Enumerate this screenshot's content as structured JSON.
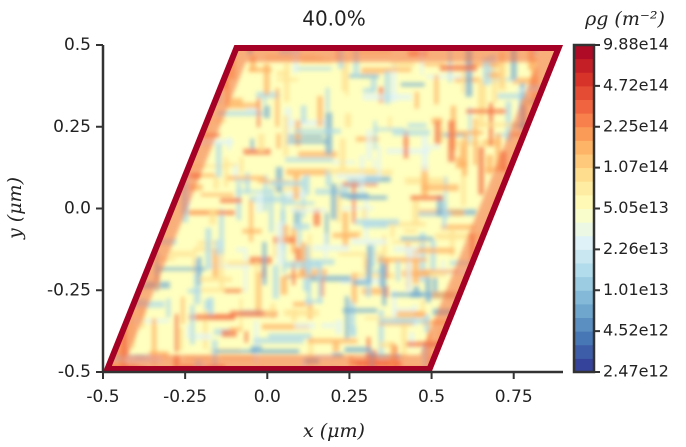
{
  "chart_data": {
    "type": "heatmap",
    "title": "40.0%",
    "xlabel": "x (μm)",
    "ylabel": "y (μm)",
    "xlim": [
      -0.5,
      0.9
    ],
    "ylim": [
      -0.5,
      0.5
    ],
    "xticks": [
      -0.5,
      -0.25,
      {
        "value": 0,
        "label": "0.0"
      },
      0.25,
      0.5,
      0.75
    ],
    "yticks": [
      -0.5,
      -0.25,
      {
        "value": 0,
        "label": "0.0"
      },
      0.25,
      0.5
    ],
    "domain_corners": [
      [
        -0.1,
        0.5
      ],
      [
        0.9,
        0.5
      ],
      [
        0.5,
        -0.5
      ],
      [
        -0.5,
        -0.5
      ]
    ],
    "colorbar": {
      "label": "ρg (m⁻²)",
      "scale": "levels",
      "ticks": [
        {
          "value": 2470000000000.0,
          "label": "2.47e12"
        },
        {
          "value": 4520000000000.0,
          "label": "4.52e12"
        },
        {
          "value": 10100000000000.0,
          "label": "1.01e13"
        },
        {
          "value": 22600000000000.0,
          "label": "2.26e13"
        },
        {
          "value": 50500000000000.0,
          "label": "5.05e13"
        },
        {
          "value": 107000000000000.0,
          "label": "1.07e14"
        },
        {
          "value": 225000000000000.0,
          "label": "2.25e14"
        },
        {
          "value": 472000000000000.0,
          "label": "4.72e14"
        },
        {
          "value": 988000000000000.0,
          "label": "9.88e14"
        }
      ]
    },
    "colormap": [
      "#313695",
      "#4575b4",
      "#74add1",
      "#abd9e9",
      "#e0f3f8",
      "#ffffbf",
      "#fee090",
      "#fdae61",
      "#f46d43",
      "#d73027",
      "#a50026"
    ]
  }
}
